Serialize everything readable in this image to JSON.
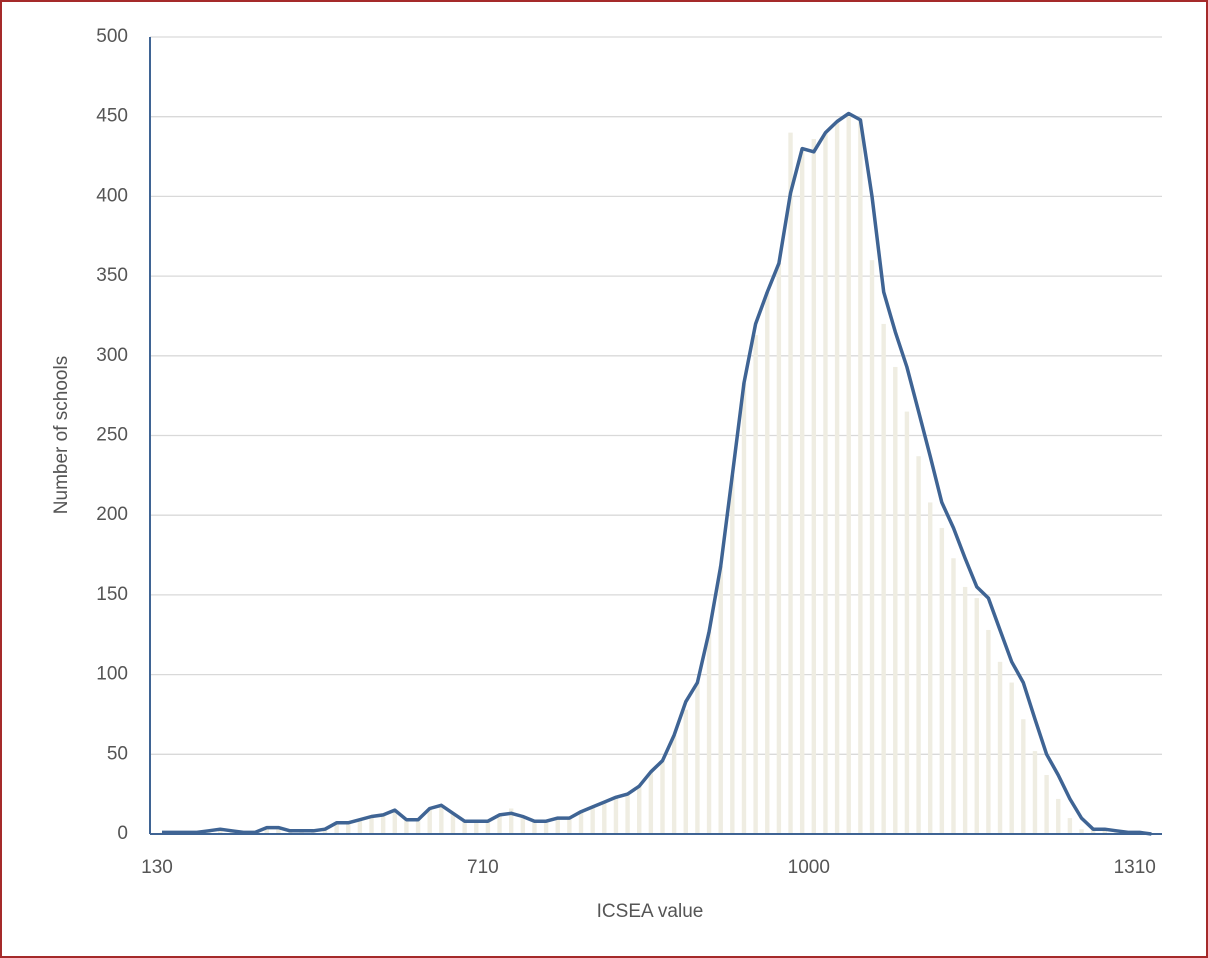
{
  "chart_data": {
    "type": "bar",
    "x_label": "ICSEA value",
    "y_label": "Number of schools",
    "categories": [
      "130",
      null,
      null,
      null,
      null,
      null,
      null,
      null,
      null,
      null,
      null,
      null,
      null,
      null,
      null,
      null,
      null,
      null,
      null,
      null,
      null,
      null,
      null,
      null,
      null,
      null,
      null,
      null,
      "710",
      null,
      null,
      null,
      null,
      null,
      null,
      null,
      null,
      null,
      null,
      null,
      null,
      null,
      null,
      null,
      null,
      null,
      null,
      null,
      null,
      null,
      null,
      null,
      null,
      null,
      null,
      null,
      "1000",
      null,
      null,
      null,
      null,
      null,
      null,
      null,
      null,
      null,
      null,
      null,
      null,
      null,
      null,
      null,
      null,
      null,
      null,
      null,
      null,
      null,
      null,
      null,
      null,
      null,
      null,
      null,
      "1310",
      null
    ],
    "series": [
      {
        "type": "bar",
        "color": "#efede2",
        "values": [
          1,
          1,
          1,
          1,
          2,
          3,
          2,
          1,
          1,
          4,
          4,
          2,
          2,
          2,
          3,
          7,
          7,
          9,
          11,
          12,
          15,
          9,
          9,
          16,
          18,
          13,
          8,
          8,
          8,
          12,
          16,
          11,
          8,
          8,
          10,
          10,
          14,
          17,
          20,
          23,
          25,
          30,
          39,
          46,
          62,
          78,
          95,
          127,
          168,
          225,
          283,
          313,
          340,
          358,
          440,
          430,
          436,
          440,
          447,
          452,
          448,
          360,
          320,
          293,
          265,
          237,
          208,
          192,
          173,
          155,
          148,
          128,
          108,
          95,
          72,
          52,
          37,
          22,
          10,
          3,
          3,
          2,
          1,
          1,
          1,
          0
        ]
      },
      {
        "type": "line",
        "color": "#3f6494",
        "values": [
          1,
          1,
          1,
          1,
          2,
          3,
          2,
          1,
          1,
          4,
          4,
          2,
          2,
          2,
          3,
          7,
          7,
          9,
          11,
          12,
          15,
          9,
          9,
          16,
          18,
          13,
          8,
          8,
          8,
          12,
          13,
          11,
          8,
          8,
          10,
          10,
          14,
          17,
          20,
          23,
          25,
          30,
          39,
          46,
          62,
          83,
          95,
          127,
          168,
          225,
          283,
          320,
          340,
          358,
          402,
          430,
          428,
          440,
          447,
          452,
          448,
          400,
          340,
          315,
          293,
          265,
          237,
          208,
          192,
          173,
          155,
          148,
          128,
          108,
          95,
          72,
          50,
          37,
          22,
          10,
          3,
          3,
          2,
          1,
          1,
          0
        ]
      }
    ],
    "ylim": [
      0,
      500
    ],
    "yticks": [
      0,
      50,
      100,
      150,
      200,
      250,
      300,
      350,
      400,
      450,
      500
    ],
    "grid": true
  }
}
